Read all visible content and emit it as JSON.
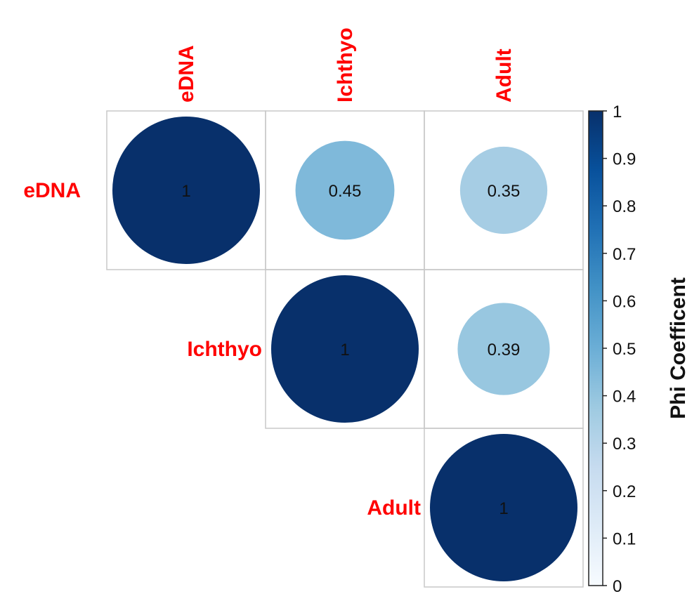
{
  "chart_data": {
    "type": "heatmap",
    "variables": [
      "eDNA",
      "Ichthyo",
      "Adult"
    ],
    "cells": [
      {
        "row": "eDNA",
        "col": "eDNA",
        "value": 1,
        "label": "1"
      },
      {
        "row": "eDNA",
        "col": "Ichthyo",
        "value": 0.45,
        "label": "0.45"
      },
      {
        "row": "eDNA",
        "col": "Adult",
        "value": 0.35,
        "label": "0.35"
      },
      {
        "row": "Ichthyo",
        "col": "Ichthyo",
        "value": 1,
        "label": "1"
      },
      {
        "row": "Ichthyo",
        "col": "Adult",
        "value": 0.39,
        "label": "0.39"
      },
      {
        "row": "Adult",
        "col": "Adult",
        "value": 1,
        "label": "1"
      }
    ],
    "colorbar": {
      "title": "Phi Coefficent",
      "range": [
        0,
        1
      ],
      "ticks": [
        "0",
        "0.1",
        "0.2",
        "0.3",
        "0.4",
        "0.5",
        "0.6",
        "0.7",
        "0.8",
        "0.9",
        "1"
      ]
    },
    "layout": "upper-triangle",
    "label_color": "#ff0000",
    "grid_color": "#c8c8c8"
  }
}
